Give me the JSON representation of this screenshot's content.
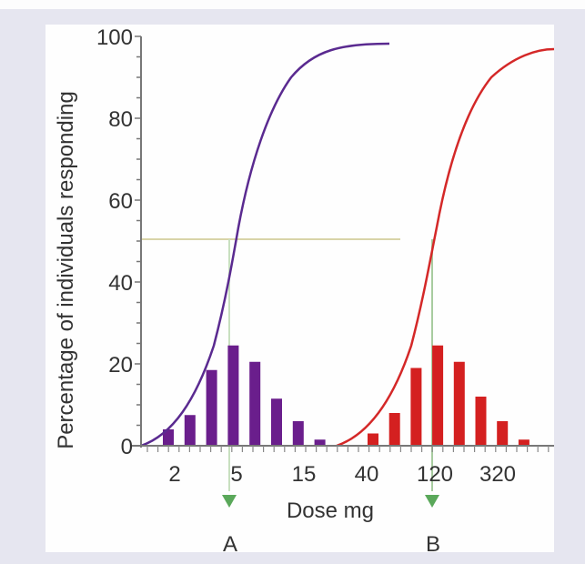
{
  "chart_data": {
    "type": "bar+line",
    "title": "",
    "xlabel": "Dose mg",
    "ylabel": "Percentage of individuals responding",
    "ylim": [
      0,
      100
    ],
    "y_ticks": [
      0,
      20,
      40,
      60,
      80,
      100
    ],
    "y_minor_step": 5,
    "x_scale": "log",
    "x_tick_labels": [
      "2",
      "5",
      "15",
      "40",
      "120",
      "320"
    ],
    "reference_line": {
      "y": 50,
      "color": "#d8d4a8"
    },
    "series": [
      {
        "name": "Drug A",
        "marker": "A",
        "color": "#6a1e8c",
        "histogram_values": [
          4,
          7.5,
          18.5,
          24.5,
          20.5,
          11.5,
          6,
          1.5
        ],
        "cumulative_curve": "sigmoid rising 0→98%, 50% at dose ≈ 5 mg",
        "ed50_dose": "5"
      },
      {
        "name": "Drug B",
        "marker": "B",
        "color": "#d42020",
        "histogram_values": [
          3,
          8,
          19,
          24.5,
          20.5,
          12,
          6,
          1.5
        ],
        "cumulative_curve": "sigmoid rising 0→97%, 50% at dose ≈ 120 mg",
        "ed50_dose": "120"
      }
    ],
    "marker_color": "#5aa85a"
  },
  "labels": {
    "y_axis_title": "Percentage of individuals responding",
    "x_axis_title": "Dose mg",
    "marker_a": "A",
    "marker_b": "B",
    "y_ticks": [
      "0",
      "20",
      "40",
      "60",
      "80",
      "100"
    ],
    "x_ticks": [
      "2",
      "5",
      "15",
      "40",
      "120",
      "320"
    ]
  }
}
